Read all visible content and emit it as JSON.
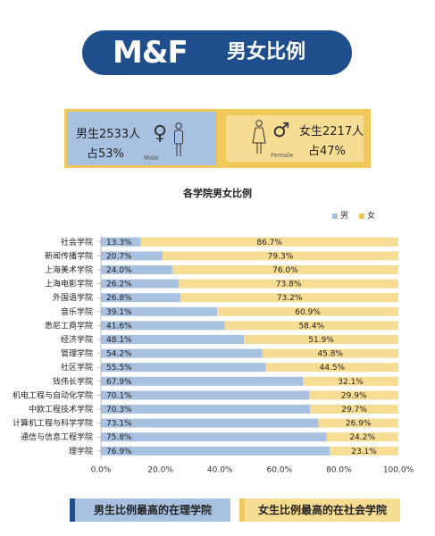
{
  "header": {
    "logo": "M&F",
    "title": "男女比例"
  },
  "stats": {
    "male": {
      "count_label": "男生2533人",
      "percent_label": "占53%",
      "caption": "Male"
    },
    "female": {
      "count_label": "女生2217人",
      "percent_label": "占47%",
      "caption": "Female"
    }
  },
  "colors": {
    "male": "#a9c1e0",
    "female": "#f7dc93",
    "navy": "#1f4e8c",
    "gold": "#f0c95a"
  },
  "chart_data": {
    "type": "bar",
    "orientation": "horizontal",
    "stacked": true,
    "title": "各学院男女比例",
    "legend": {
      "placement": "top-right"
    },
    "categories": [
      "社会学院",
      "新闻传播学院",
      "上海美术学院",
      "上海电影学院",
      "外国语学院",
      "音乐学院",
      "悉尼工商学院",
      "经济学院",
      "管理学院",
      "社区学院",
      "钱伟长学院",
      "机电工程与自动化学院",
      "中欧工程技术学院",
      "计算机工程与科学学院",
      "通信与信息工程学院",
      "理学院"
    ],
    "series": [
      {
        "name": "男",
        "values": [
          13.3,
          20.7,
          24.0,
          26.2,
          26.8,
          39.1,
          41.6,
          48.1,
          54.2,
          55.5,
          67.9,
          70.1,
          70.3,
          73.1,
          75.8,
          76.9
        ],
        "labels": [
          "13.3%",
          "20.7%",
          "24.0%",
          "26.2%",
          "26.8%",
          "39.1%",
          "41.6%",
          "48.1%",
          "54.2%",
          "55.5%",
          "67.9%",
          "70.1%",
          "70.3%",
          "73.1%",
          "75.8%",
          "76.9%"
        ]
      },
      {
        "name": "女",
        "values": [
          86.7,
          79.3,
          76.0,
          73.8,
          73.2,
          60.9,
          58.4,
          51.9,
          45.8,
          44.5,
          32.1,
          29.9,
          29.7,
          26.9,
          24.2,
          23.1
        ],
        "labels": [
          "86.7%",
          "79.3%",
          "76.0%",
          "73.8%",
          "73.2%",
          "60.9%",
          "58.4%",
          "51.9%",
          "45.8%",
          "44.5%",
          "32.1%",
          "29.9%",
          "29.7%",
          "26.9%",
          "24.2%",
          "23.1%"
        ]
      }
    ],
    "xlim": [
      0,
      100
    ],
    "xticks": [
      0,
      20,
      40,
      60,
      80,
      100
    ],
    "xtick_labels": [
      "0.0%",
      "20.0%",
      "40.0%",
      "60.0%",
      "80.0%",
      "100.0%"
    ],
    "grid": false
  },
  "summary": {
    "male": "男生比例最高的在理学院",
    "female": "女生比例最高的在社会学院"
  }
}
